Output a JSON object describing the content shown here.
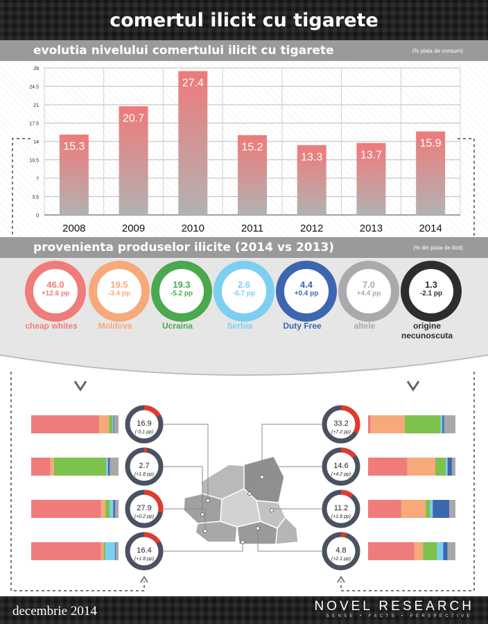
{
  "title": "comertul ilicit cu tigarete",
  "section1": {
    "title": "evolutia nivelului comertului ilicit cu tigarete",
    "note": "(% piata de consum)"
  },
  "section2": {
    "title": "provenienta produselor ilicite (2014 vs 2013)",
    "note": "(% din piata de ilicit)"
  },
  "chart_data": {
    "type": "bar",
    "title": "evolutia nivelului comertului ilicit cu tigarete",
    "categories": [
      "2008",
      "2009",
      "2010",
      "2011",
      "2012",
      "2013",
      "2014"
    ],
    "values": [
      15.3,
      20.7,
      27.4,
      15.2,
      13.3,
      13.7,
      15.9
    ],
    "data_labels": [
      "15.3",
      "20.7",
      "27.4",
      "15.2",
      "13.3",
      "13.7",
      "15.9"
    ],
    "yticks": [
      "0",
      "3.5",
      "7",
      "10.5",
      "14",
      "17.5",
      "21",
      "24.5",
      "28"
    ],
    "ylim": [
      0,
      28
    ],
    "grid": true,
    "colors": {
      "bar_top": "#ef7a7a",
      "bar_bottom": "#b2b2b2"
    }
  },
  "sources": [
    {
      "value": "46.0",
      "delta": "+12.6 pp",
      "label": "cheap whites",
      "color": "#f07b7b"
    },
    {
      "value": "19.5",
      "delta": "-3.4 pp",
      "label": "Moldova",
      "color": "#f7a97a"
    },
    {
      "value": "19.3",
      "delta": "-5.2 pp",
      "label": "Ucraina",
      "color": "#4aa84f"
    },
    {
      "value": "2.6",
      "delta": "-6.7 pp",
      "label": "Serbia",
      "color": "#7dcff2"
    },
    {
      "value": "4.4",
      "delta": "+0.4 pp",
      "label": "Duty Free",
      "color": "#3d66b0"
    },
    {
      "value": "7.0",
      "delta": "+4.4 pp",
      "label": "altele",
      "color": "#aaaaaa"
    },
    {
      "value": "1.3",
      "delta": "-2.1 pp",
      "label": "origine\nnecunoscuta",
      "color": "#2d2d2d"
    }
  ],
  "regions_left": [
    {
      "value": "16.9",
      "delta": "(-3.1 pp)",
      "share": 0.169,
      "segments": [
        0.78,
        0.11,
        0.04,
        0.01,
        0.01,
        0.05
      ]
    },
    {
      "value": "2.7",
      "delta": "(+1.8 pp)",
      "share": 0.027,
      "segments": [
        0.22,
        0.04,
        0.6,
        0.02,
        0.02,
        0.1
      ]
    },
    {
      "value": "27.9",
      "delta": "(+0.2 pp)",
      "share": 0.279,
      "segments": [
        0.8,
        0.05,
        0.05,
        0.04,
        0.02,
        0.04
      ]
    },
    {
      "value": "16.4",
      "delta": "(+1.8 pp)",
      "share": 0.164,
      "segments": [
        0.8,
        0.03,
        0.02,
        0.11,
        0.01,
        0.03
      ]
    }
  ],
  "regions_right": [
    {
      "value": "33.2",
      "delta": "(+7.2 pp)",
      "share": 0.332,
      "segments": [
        0.03,
        0.39,
        0.41,
        0.02,
        0.02,
        0.13
      ]
    },
    {
      "value": "14.6",
      "delta": "(+4.2 pp)",
      "share": 0.146,
      "segments": [
        0.45,
        0.32,
        0.12,
        0.02,
        0.05,
        0.04
      ]
    },
    {
      "value": "11.2",
      "delta": "(+1.8 pp)",
      "share": 0.112,
      "segments": [
        0.38,
        0.28,
        0.05,
        0.03,
        0.19,
        0.07
      ]
    },
    {
      "value": "4.8",
      "delta": "(+2.1 pp)",
      "share": 0.048,
      "segments": [
        0.53,
        0.1,
        0.16,
        0.07,
        0.05,
        0.09
      ]
    }
  ],
  "segment_colors": [
    "#f07b7b",
    "#f7a97a",
    "#7cc24c",
    "#7dcff2",
    "#3d66b0",
    "#a8a8a8"
  ],
  "footer": {
    "date": "decembrie 2014",
    "brand": "NOVEL RESEARCH",
    "tagline": "SENSE • FACTS • PERSPECTIVE"
  }
}
